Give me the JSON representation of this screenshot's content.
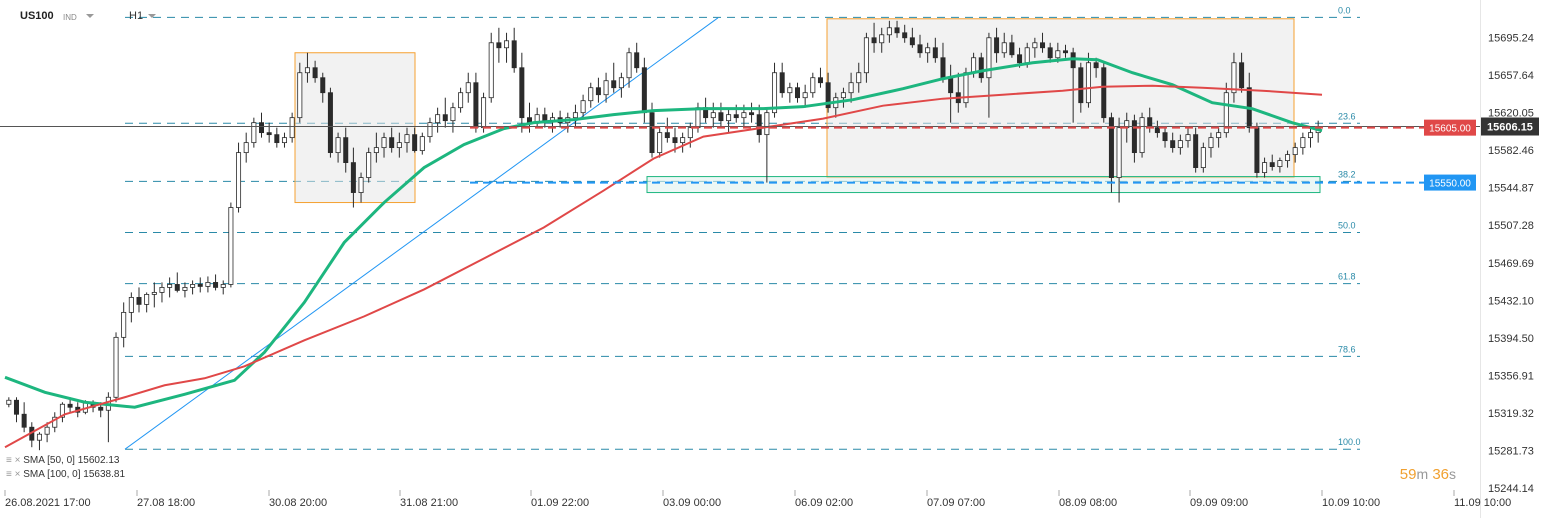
{
  "header": {
    "symbol": "US100",
    "class": "IND",
    "timeframe": "H1"
  },
  "indicators": [
    {
      "label": "SMA [50, 0]",
      "value": "15602.13",
      "color": "#1db67f"
    },
    {
      "label": "SMA [100, 0]",
      "value": "15638.81",
      "color": "#e04848"
    }
  ],
  "timer": {
    "minutes": "59",
    "m": "m",
    "seconds": "36",
    "s": "s"
  },
  "chart_data": {
    "type": "candlestick",
    "y_ticks": [
      "15695.24",
      "15657.64",
      "15620.05",
      "15582.46",
      "15544.87",
      "15507.28",
      "15469.69",
      "15432.10",
      "15394.50",
      "15356.91",
      "15319.32",
      "15281.73",
      "15244.14"
    ],
    "x_ticks": [
      "26.08.2021 17:00",
      "27.08 18:00",
      "30.08 20:00",
      "31.08 21:00",
      "01.09 22:00",
      "03.09 00:00",
      "06.09 02:00",
      "07.09 07:00",
      "08.09 08:00",
      "09.09 09:00",
      "10.09 10:00",
      "11.09 10:00"
    ],
    "ylim": [
      15244.14,
      15732.83
    ],
    "current_price": "15606.15",
    "price_tags": [
      {
        "label": "15605.00",
        "value": 15605.0,
        "color": "#e04848"
      },
      {
        "label": "15550.00",
        "value": 15550.0,
        "color": "#2196f3"
      }
    ],
    "fibonacci": [
      {
        "label": "0.0",
        "value": 15715.4
      },
      {
        "label": "23.6",
        "value": 15609.4
      },
      {
        "label": "38.2",
        "value": 15551.2
      },
      {
        "label": "50.0",
        "value": 15500.0
      },
      {
        "label": "61.8",
        "value": 15448.8
      },
      {
        "label": "78.6",
        "value": 15376.0
      },
      {
        "label": "100.0",
        "value": 15283.0
      }
    ],
    "series": [
      {
        "name": "SMA [50, 0]",
        "color": "#1db67f",
        "points": [
          [
            0,
            15355
          ],
          [
            40,
            15340
          ],
          [
            80,
            15330
          ],
          [
            130,
            15325
          ],
          [
            180,
            15338
          ],
          [
            230,
            15352
          ],
          [
            260,
            15380
          ],
          [
            300,
            15430
          ],
          [
            340,
            15490
          ],
          [
            380,
            15530
          ],
          [
            420,
            15565
          ],
          [
            460,
            15588
          ],
          [
            500,
            15604
          ],
          [
            530,
            15610
          ],
          [
            570,
            15613
          ],
          [
            610,
            15618
          ],
          [
            650,
            15622
          ],
          [
            700,
            15624
          ],
          [
            760,
            15624
          ],
          [
            800,
            15626
          ],
          [
            850,
            15633
          ],
          [
            900,
            15644
          ],
          [
            940,
            15654
          ],
          [
            980,
            15662
          ],
          [
            1030,
            15670
          ],
          [
            1070,
            15674
          ],
          [
            1095,
            15673
          ],
          [
            1130,
            15660
          ],
          [
            1170,
            15648
          ],
          [
            1210,
            15630
          ],
          [
            1250,
            15624
          ],
          [
            1290,
            15610
          ],
          [
            1320,
            15602
          ]
        ]
      },
      {
        "name": "SMA [100, 0]",
        "color": "#e04848",
        "points": [
          [
            0,
            15285
          ],
          [
            60,
            15318
          ],
          [
            120,
            15335
          ],
          [
            160,
            15347
          ],
          [
            200,
            15354
          ],
          [
            240,
            15366
          ],
          [
            300,
            15392
          ],
          [
            360,
            15416
          ],
          [
            420,
            15443
          ],
          [
            480,
            15474
          ],
          [
            540,
            15505
          ],
          [
            600,
            15542
          ],
          [
            650,
            15574
          ],
          [
            700,
            15596
          ],
          [
            760,
            15605
          ],
          [
            820,
            15614
          ],
          [
            880,
            15627
          ],
          [
            940,
            15634
          ],
          [
            1000,
            15638
          ],
          [
            1060,
            15642
          ],
          [
            1100,
            15646
          ],
          [
            1150,
            15647
          ],
          [
            1200,
            15645
          ],
          [
            1260,
            15642
          ],
          [
            1290,
            15640
          ],
          [
            1320,
            15638
          ]
        ]
      }
    ],
    "candles": [
      [
        15328,
        15335,
        15325,
        15332
      ],
      [
        15332,
        15335,
        15310,
        15318
      ],
      [
        15318,
        15330,
        15300,
        15305
      ],
      [
        15305,
        15310,
        15285,
        15292
      ],
      [
        15292,
        15300,
        15282,
        15298
      ],
      [
        15298,
        15310,
        15290,
        15305
      ],
      [
        15305,
        15320,
        15300,
        15315
      ],
      [
        15315,
        15330,
        15310,
        15328
      ],
      [
        15328,
        15335,
        15320,
        15325
      ],
      [
        15325,
        15330,
        15315,
        15320
      ],
      [
        15320,
        15332,
        15318,
        15330
      ],
      [
        15330,
        15332,
        15320,
        15325
      ],
      [
        15325,
        15330,
        15315,
        15322
      ],
      [
        15322,
        15340,
        15290,
        15335
      ],
      [
        15335,
        15400,
        15330,
        15395
      ],
      [
        15395,
        15430,
        15385,
        15420
      ],
      [
        15420,
        15440,
        15410,
        15435
      ],
      [
        15435,
        15445,
        15420,
        15428
      ],
      [
        15428,
        15440,
        15420,
        15438
      ],
      [
        15438,
        15450,
        15425,
        15440
      ],
      [
        15440,
        15450,
        15430,
        15445
      ],
      [
        15445,
        15455,
        15435,
        15448
      ],
      [
        15448,
        15460,
        15440,
        15442
      ],
      [
        15442,
        15450,
        15435,
        15445
      ],
      [
        15445,
        15452,
        15438,
        15448
      ],
      [
        15448,
        15455,
        15440,
        15446
      ],
      [
        15446,
        15456,
        15440,
        15450
      ],
      [
        15450,
        15458,
        15442,
        15445
      ],
      [
        15445,
        15452,
        15438,
        15448
      ],
      [
        15448,
        15530,
        15445,
        15525
      ],
      [
        15525,
        15590,
        15520,
        15580
      ],
      [
        15580,
        15600,
        15570,
        15590
      ],
      [
        15590,
        15615,
        15585,
        15610
      ],
      [
        15610,
        15620,
        15595,
        15600
      ],
      [
        15600,
        15610,
        15590,
        15598
      ],
      [
        15598,
        15605,
        15585,
        15590
      ],
      [
        15590,
        15600,
        15585,
        15595
      ],
      [
        15595,
        15620,
        15590,
        15615
      ],
      [
        15615,
        15670,
        15610,
        15660
      ],
      [
        15660,
        15680,
        15650,
        15665
      ],
      [
        15665,
        15672,
        15650,
        15655
      ],
      [
        15655,
        15660,
        15630,
        15640
      ],
      [
        15640,
        15645,
        15575,
        15580
      ],
      [
        15580,
        15600,
        15570,
        15595
      ],
      [
        15595,
        15605,
        15560,
        15570
      ],
      [
        15570,
        15585,
        15525,
        15540
      ],
      [
        15540,
        15560,
        15530,
        15555
      ],
      [
        15555,
        15585,
        15550,
        15580
      ],
      [
        15580,
        15600,
        15570,
        15585
      ],
      [
        15585,
        15600,
        15575,
        15595
      ],
      [
        15595,
        15605,
        15580,
        15585
      ],
      [
        15585,
        15600,
        15575,
        15590
      ],
      [
        15590,
        15605,
        15580,
        15598
      ],
      [
        15598,
        15605,
        15580,
        15582
      ],
      [
        15582,
        15600,
        15578,
        15596
      ],
      [
        15596,
        15615,
        15590,
        15610
      ],
      [
        15610,
        15625,
        15600,
        15618
      ],
      [
        15618,
        15635,
        15605,
        15612
      ],
      [
        15612,
        15630,
        15600,
        15625
      ],
      [
        15625,
        15645,
        15620,
        15640
      ],
      [
        15640,
        15660,
        15630,
        15650
      ],
      [
        15650,
        15660,
        15600,
        15605
      ],
      [
        15605,
        15640,
        15600,
        15635
      ],
      [
        15635,
        15700,
        15630,
        15690
      ],
      [
        15690,
        15705,
        15670,
        15685
      ],
      [
        15685,
        15700,
        15670,
        15692
      ],
      [
        15692,
        15705,
        15660,
        15665
      ],
      [
        15665,
        15680,
        15600,
        15615
      ],
      [
        15615,
        15630,
        15600,
        15610
      ],
      [
        15610,
        15625,
        15605,
        15618
      ],
      [
        15618,
        15625,
        15605,
        15612
      ],
      [
        15612,
        15620,
        15600,
        15615
      ],
      [
        15615,
        15622,
        15605,
        15610
      ],
      [
        15610,
        15620,
        15600,
        15615
      ],
      [
        15615,
        15628,
        15605,
        15620
      ],
      [
        15620,
        15638,
        15615,
        15632
      ],
      [
        15632,
        15650,
        15625,
        15645
      ],
      [
        15645,
        15655,
        15630,
        15638
      ],
      [
        15638,
        15660,
        15630,
        15652
      ],
      [
        15652,
        15670,
        15640,
        15645
      ],
      [
        15645,
        15660,
        15635,
        15655
      ],
      [
        15655,
        15685,
        15645,
        15680
      ],
      [
        15680,
        15690,
        15660,
        15665
      ],
      [
        15665,
        15675,
        15610,
        15620
      ],
      [
        15620,
        15630,
        15575,
        15580
      ],
      [
        15580,
        15605,
        15575,
        15600
      ],
      [
        15600,
        15615,
        15590,
        15595
      ],
      [
        15595,
        15605,
        15580,
        15590
      ],
      [
        15590,
        15600,
        15580,
        15595
      ],
      [
        15595,
        15610,
        15585,
        15605
      ],
      [
        15605,
        15630,
        15600,
        15625
      ],
      [
        15625,
        15635,
        15610,
        15615
      ],
      [
        15615,
        15630,
        15605,
        15620
      ],
      [
        15620,
        15630,
        15605,
        15612
      ],
      [
        15612,
        15625,
        15600,
        15618
      ],
      [
        15618,
        15628,
        15610,
        15615
      ],
      [
        15615,
        15628,
        15605,
        15620
      ],
      [
        15620,
        15630,
        15610,
        15618
      ],
      [
        15618,
        15628,
        15590,
        15598
      ],
      [
        15598,
        15625,
        15550,
        15620
      ],
      [
        15620,
        15670,
        15615,
        15660
      ],
      [
        15660,
        15670,
        15635,
        15640
      ],
      [
        15640,
        15650,
        15630,
        15645
      ],
      [
        15645,
        15650,
        15630,
        15635
      ],
      [
        15635,
        15648,
        15625,
        15640
      ],
      [
        15640,
        15660,
        15635,
        15655
      ],
      [
        15655,
        15665,
        15645,
        15650
      ],
      [
        15650,
        15660,
        15620,
        15625
      ],
      [
        15625,
        15640,
        15615,
        15635
      ],
      [
        15635,
        15645,
        15625,
        15640
      ],
      [
        15640,
        15660,
        15630,
        15650
      ],
      [
        15650,
        15670,
        15640,
        15660
      ],
      [
        15660,
        15700,
        15650,
        15695
      ],
      [
        15695,
        15710,
        15680,
        15690
      ],
      [
        15690,
        15705,
        15680,
        15698
      ],
      [
        15698,
        15712,
        15690,
        15705
      ],
      [
        15705,
        15712,
        15695,
        15700
      ],
      [
        15700,
        15708,
        15690,
        15695
      ],
      [
        15695,
        15705,
        15685,
        15688
      ],
      [
        15688,
        15698,
        15675,
        15680
      ],
      [
        15680,
        15690,
        15670,
        15685
      ],
      [
        15685,
        15695,
        15670,
        15675
      ],
      [
        15675,
        15690,
        15650,
        15655
      ],
      [
        15655,
        15668,
        15610,
        15640
      ],
      [
        15640,
        15660,
        15620,
        15630
      ],
      [
        15630,
        15665,
        15625,
        15660
      ],
      [
        15660,
        15680,
        15655,
        15675
      ],
      [
        15675,
        15680,
        15650,
        15655
      ],
      [
        15655,
        15700,
        15615,
        15695
      ],
      [
        15695,
        15705,
        15670,
        15680
      ],
      [
        15680,
        15700,
        15675,
        15690
      ],
      [
        15690,
        15698,
        15675,
        15678
      ],
      [
        15678,
        15685,
        15665,
        15670
      ],
      [
        15670,
        15690,
        15665,
        15685
      ],
      [
        15685,
        15695,
        15675,
        15690
      ],
      [
        15690,
        15700,
        15680,
        15685
      ],
      [
        15685,
        15690,
        15670,
        15675
      ],
      [
        15675,
        15690,
        15670,
        15682
      ],
      [
        15682,
        15688,
        15675,
        15680
      ],
      [
        15680,
        15685,
        15610,
        15665
      ],
      [
        15665,
        15670,
        15620,
        15630
      ],
      [
        15630,
        15680,
        15625,
        15670
      ],
      [
        15670,
        15675,
        15655,
        15665
      ],
      [
        15665,
        15670,
        15610,
        15615
      ],
      [
        15615,
        15620,
        15540,
        15555
      ],
      [
        15555,
        15615,
        15530,
        15605
      ],
      [
        15605,
        15620,
        15590,
        15612
      ],
      [
        15612,
        15618,
        15570,
        15580
      ],
      [
        15580,
        15620,
        15575,
        15615
      ],
      [
        15615,
        15625,
        15600,
        15605
      ],
      [
        15605,
        15612,
        15595,
        15600
      ],
      [
        15600,
        15605,
        15585,
        15592
      ],
      [
        15592,
        15600,
        15580,
        15585
      ],
      [
        15585,
        15598,
        15578,
        15592
      ],
      [
        15592,
        15605,
        15585,
        15598
      ],
      [
        15598,
        15605,
        15560,
        15565
      ],
      [
        15565,
        15590,
        15560,
        15585
      ],
      [
        15585,
        15600,
        15575,
        15595
      ],
      [
        15595,
        15605,
        15585,
        15600
      ],
      [
        15600,
        15650,
        15595,
        15640
      ],
      [
        15640,
        15680,
        15630,
        15670
      ],
      [
        15670,
        15680,
        15640,
        15645
      ],
      [
        15645,
        15660,
        15600,
        15605
      ],
      [
        15605,
        15610,
        15555,
        15560
      ],
      [
        15560,
        15575,
        15555,
        15570
      ],
      [
        15570,
        15578,
        15562,
        15566
      ],
      [
        15566,
        15575,
        15560,
        15572
      ],
      [
        15572,
        15582,
        15565,
        15578
      ],
      [
        15578,
        15590,
        15570,
        15585
      ],
      [
        15585,
        15600,
        15578,
        15595
      ],
      [
        15595,
        15605,
        15585,
        15600
      ],
      [
        15600,
        15612,
        15590,
        15606
      ]
    ]
  }
}
